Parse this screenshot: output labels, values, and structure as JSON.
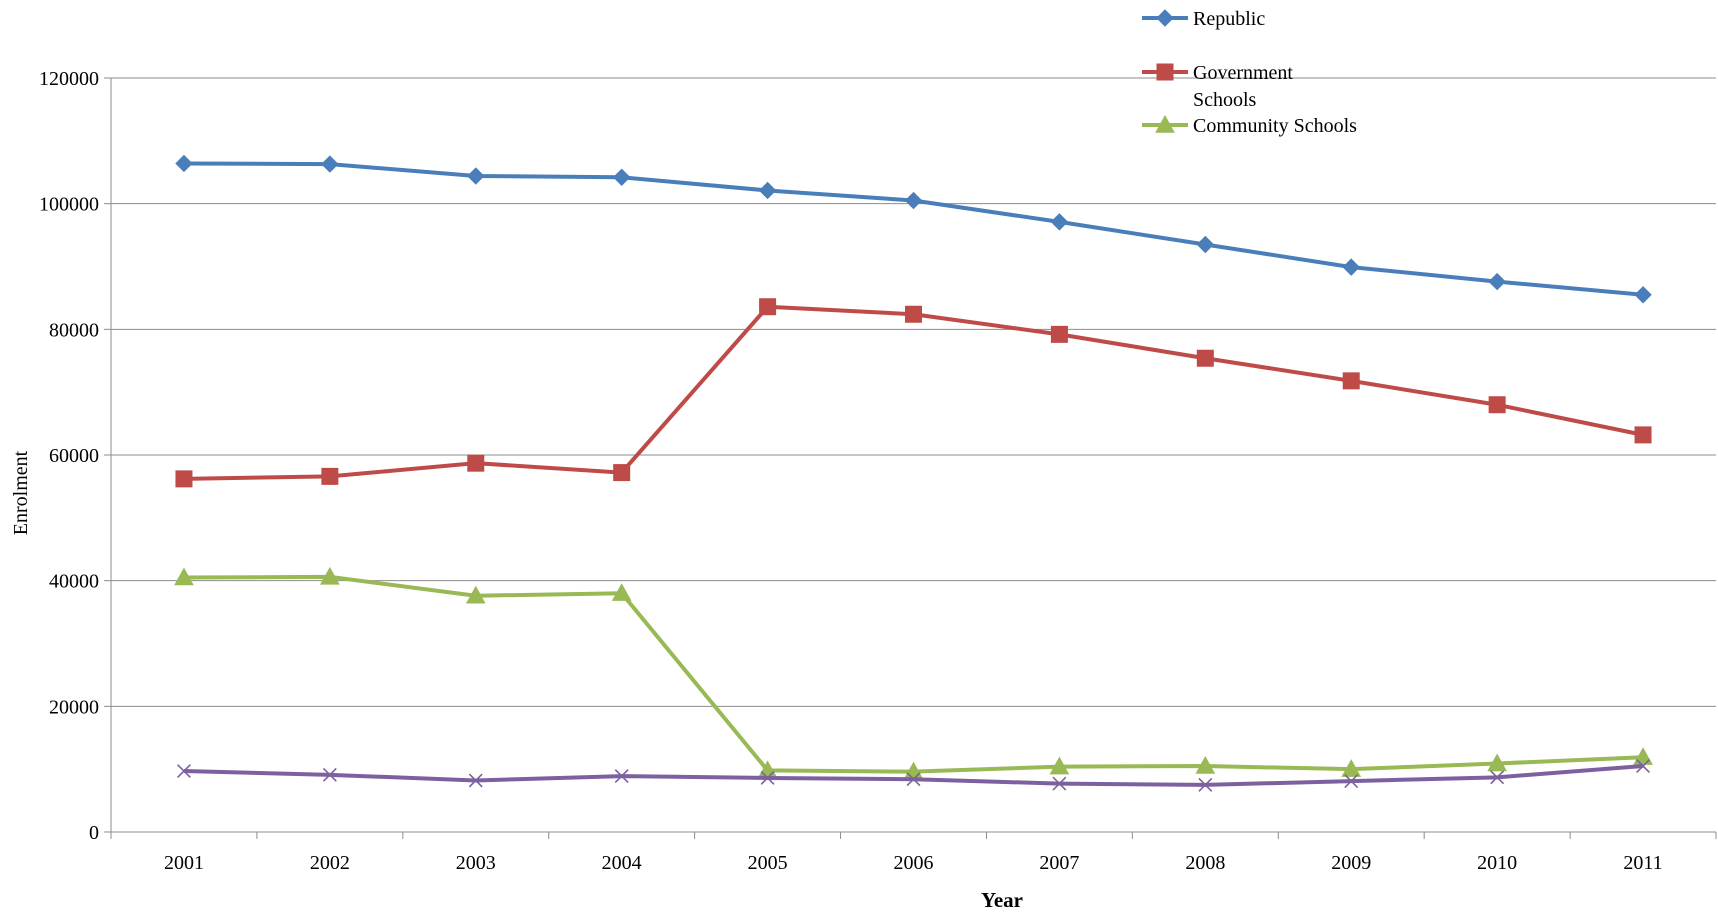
{
  "chart_data": {
    "type": "line",
    "x": [
      "2001",
      "2002",
      "2003",
      "2004",
      "2005",
      "2006",
      "2007",
      "2008",
      "2009",
      "2010",
      "2011"
    ],
    "xlabel": "Year",
    "ylabel": "Enrolment",
    "ylim": [
      0,
      120000
    ],
    "yticks": [
      "0",
      "20000",
      "40000",
      "60000",
      "80000",
      "100000",
      "120000"
    ],
    "grid": "horizontal",
    "legend_position": "top-right",
    "series": [
      {
        "name": "Republic",
        "color": "#4a7ebb",
        "marker": "diamond",
        "values": [
          106400,
          106300,
          104400,
          104200,
          102100,
          100500,
          97100,
          93500,
          89900,
          87600,
          85500
        ]
      },
      {
        "name": "Government Schools",
        "legend_lines": [
          "Government",
          "Schools"
        ],
        "color": "#be4b48",
        "marker": "square",
        "values": [
          56200,
          56600,
          58700,
          57200,
          83600,
          82400,
          79200,
          75400,
          71800,
          68000,
          63200
        ]
      },
      {
        "name": "Community Schools",
        "color": "#98b954",
        "marker": "triangle",
        "values": [
          40500,
          40600,
          37600,
          38000,
          9800,
          9600,
          10400,
          10500,
          10000,
          10900,
          11900
        ]
      },
      {
        "color": "#7d60a0",
        "marker": "x",
        "values": [
          9700,
          9100,
          8200,
          8900,
          8600,
          8400,
          7700,
          7500,
          8100,
          8700,
          10500
        ]
      }
    ]
  }
}
